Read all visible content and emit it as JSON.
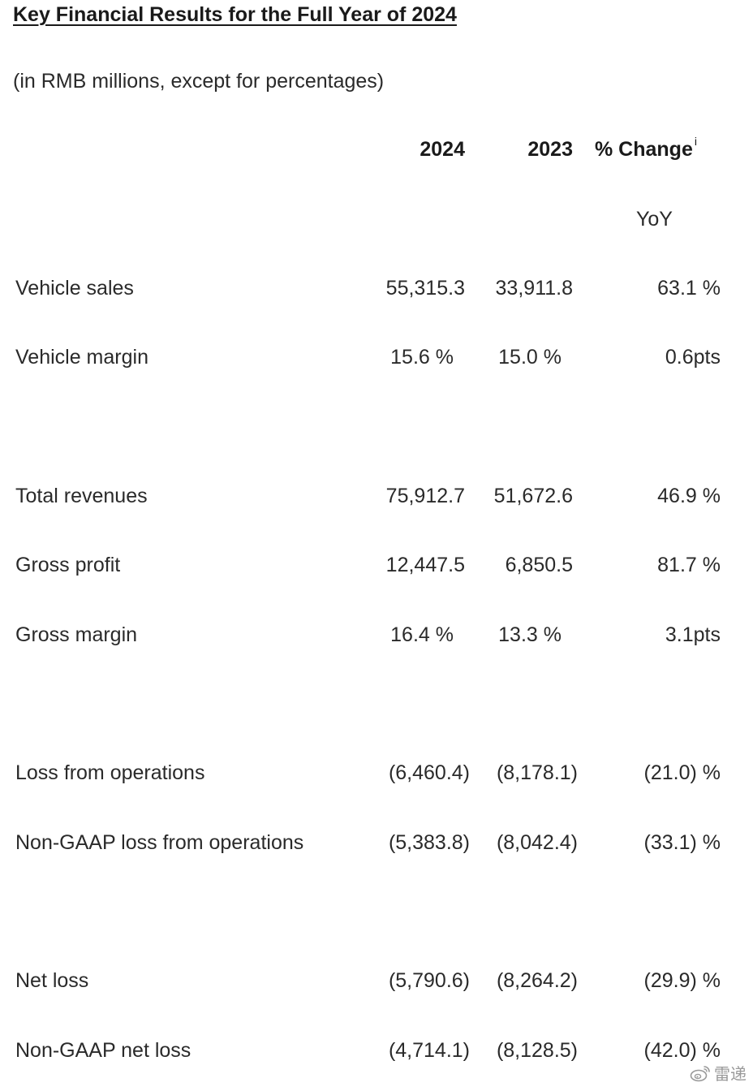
{
  "title": "Key Financial Results for the Full Year of 2024",
  "subtitle": "(in RMB millions, except for percentages)",
  "columns": {
    "y2024": "2024",
    "y2023": "2023",
    "change": "% Change",
    "change_note": "i",
    "change_sub": "YoY"
  },
  "rows": [
    {
      "label": "Vehicle sales",
      "v2024": "55,315.3",
      "v2023": "33,911.8",
      "change": "63.1 %"
    },
    {
      "label": "Vehicle margin",
      "v2024": "15.6 %",
      "v2023": "15.0 %",
      "change": "0.6pts"
    },
    {
      "label": "Total revenues",
      "v2024": "75,912.7",
      "v2023": "51,672.6",
      "change": "46.9 %"
    },
    {
      "label": "Gross profit",
      "v2024": "12,447.5",
      "v2023": "6,850.5",
      "change": "81.7 %"
    },
    {
      "label": "Gross margin",
      "v2024": "16.4 %",
      "v2023": "13.3 %",
      "change": "3.1pts"
    },
    {
      "label": "Loss from operations",
      "v2024": "(6,460.4)",
      "v2023": "(8,178.1)",
      "change": "(21.0) %"
    },
    {
      "label": "Non-GAAP loss from operations",
      "v2024": "(5,383.8)",
      "v2023": "(8,042.4)",
      "change": "(33.1) %"
    },
    {
      "label": "Net loss",
      "v2024": "(5,790.6)",
      "v2023": "(8,264.2)",
      "change": "(29.9) %"
    },
    {
      "label": "Non-GAAP net loss",
      "v2024": "(4,714.1)",
      "v2023": "(8,128.5)",
      "change": "(42.0) %"
    }
  ],
  "watermark": {
    "icon": "weibo-icon",
    "text": "雷递"
  }
}
